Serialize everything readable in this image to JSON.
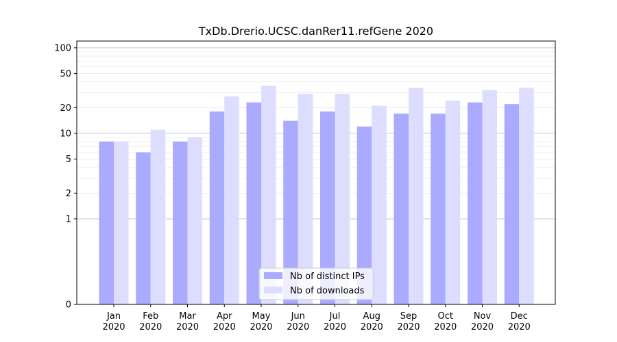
{
  "chart_data": {
    "type": "bar",
    "title": "TxDb.Drerio.UCSC.danRer11.refGene 2020",
    "xlabel": "",
    "ylabel": "",
    "y_scale": "symlog",
    "ylim": [
      0,
      120
    ],
    "y_ticks": [
      0,
      1,
      2,
      5,
      10,
      20,
      50,
      100
    ],
    "y_tick_labels": [
      "0",
      "1",
      "2",
      "5",
      "10",
      "20",
      "50",
      "100"
    ],
    "categories": [
      "Jan\n2020",
      "Feb\n2020",
      "Mar\n2020",
      "Apr\n2020",
      "May\n2020",
      "Jun\n2020",
      "Jul\n2020",
      "Aug\n2020",
      "Sep\n2020",
      "Oct\n2020",
      "Nov\n2020",
      "Dec\n2020"
    ],
    "category_lines": [
      [
        "Jan",
        "2020"
      ],
      [
        "Feb",
        "2020"
      ],
      [
        "Mar",
        "2020"
      ],
      [
        "Apr",
        "2020"
      ],
      [
        "May",
        "2020"
      ],
      [
        "Jun",
        "2020"
      ],
      [
        "Jul",
        "2020"
      ],
      [
        "Aug",
        "2020"
      ],
      [
        "Sep",
        "2020"
      ],
      [
        "Oct",
        "2020"
      ],
      [
        "Nov",
        "2020"
      ],
      [
        "Dec",
        "2020"
      ]
    ],
    "series": [
      {
        "name": "Nb of distinct IPs",
        "color": "#aaaaff",
        "values": [
          8,
          6,
          8,
          18,
          23,
          14,
          18,
          12,
          17,
          17,
          23,
          22
        ]
      },
      {
        "name": "Nb of downloads",
        "color": "#ddddff",
        "values": [
          8,
          11,
          9,
          27,
          36,
          29,
          29,
          21,
          34,
          24,
          32,
          34
        ]
      }
    ],
    "legend_position": "bottom-center",
    "grid": true
  }
}
